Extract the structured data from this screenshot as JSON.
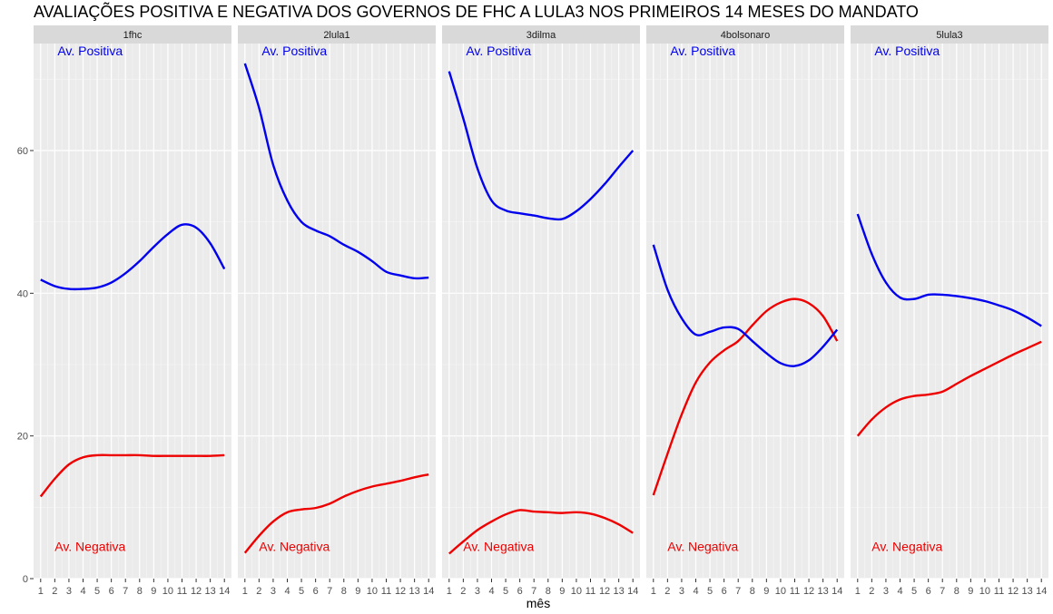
{
  "chart_data": {
    "type": "line",
    "title": "AVALIAÇÕES POSITIVA E NEGATIVA DOS GOVERNOS DE FHC A LULA3 NOS PRIMEIROS 14 MESES DO MANDATO",
    "xlabel": "mês",
    "ylabel": "",
    "x": [
      1,
      2,
      3,
      4,
      5,
      6,
      7,
      8,
      9,
      10,
      11,
      12,
      13,
      14
    ],
    "xlim": [
      0.5,
      14.5
    ],
    "ylim": [
      0,
      75
    ],
    "y_ticks": [
      0,
      20,
      40,
      60
    ],
    "grid": true,
    "legend": "none",
    "colors": {
      "positive": "#0000ee",
      "negative": "#ee0000",
      "panel_bg": "#ebebeb",
      "strip_bg": "#d9d9d9"
    },
    "annotations": {
      "positive_label": "Av. Positiva",
      "negative_label": "Av. Negativa",
      "positive_y": 74,
      "negative_y": 4.5
    },
    "facets": [
      {
        "label": "1fhc",
        "positive": [
          41.9,
          41.0,
          40.6,
          40.6,
          40.8,
          41.5,
          42.8,
          44.5,
          46.5,
          48.3,
          49.6,
          49.2,
          47.0,
          43.4
        ],
        "negative": [
          11.5,
          14.0,
          16.0,
          17.0,
          17.3,
          17.3,
          17.3,
          17.3,
          17.2,
          17.2,
          17.2,
          17.2,
          17.2,
          17.3
        ]
      },
      {
        "label": "2lula1",
        "positive": [
          72.2,
          66.0,
          58.0,
          53.0,
          50.0,
          48.8,
          48.0,
          46.8,
          45.8,
          44.5,
          43.0,
          42.5,
          42.1,
          42.2
        ],
        "negative": [
          3.6,
          6.0,
          8.0,
          9.3,
          9.7,
          9.9,
          10.5,
          11.5,
          12.3,
          12.9,
          13.3,
          13.7,
          14.2,
          14.6
        ]
      },
      {
        "label": "3dilma",
        "positive": [
          71.1,
          64.5,
          57.5,
          53.0,
          51.6,
          51.2,
          50.9,
          50.5,
          50.4,
          51.5,
          53.2,
          55.3,
          57.7,
          60.0
        ],
        "negative": [
          3.5,
          5.2,
          6.8,
          8.0,
          9.0,
          9.6,
          9.4,
          9.3,
          9.2,
          9.3,
          9.1,
          8.5,
          7.6,
          6.4
        ]
      },
      {
        "label": "4bolsonaro",
        "positive": [
          46.8,
          40.5,
          36.5,
          34.2,
          34.6,
          35.2,
          35.0,
          33.3,
          31.6,
          30.2,
          29.8,
          30.6,
          32.5,
          34.9
        ],
        "negative": [
          11.7,
          17.5,
          23.0,
          27.5,
          30.3,
          32.0,
          33.3,
          35.5,
          37.5,
          38.7,
          39.2,
          38.6,
          36.8,
          33.3
        ]
      },
      {
        "label": "5lula3",
        "positive": [
          51.1,
          45.5,
          41.5,
          39.4,
          39.2,
          39.8,
          39.8,
          39.6,
          39.3,
          38.9,
          38.3,
          37.6,
          36.6,
          35.4
        ],
        "negative": [
          20.0,
          22.3,
          24.0,
          25.1,
          25.6,
          25.8,
          26.2,
          27.3,
          28.4,
          29.4,
          30.4,
          31.4,
          32.3,
          33.2
        ]
      }
    ]
  }
}
